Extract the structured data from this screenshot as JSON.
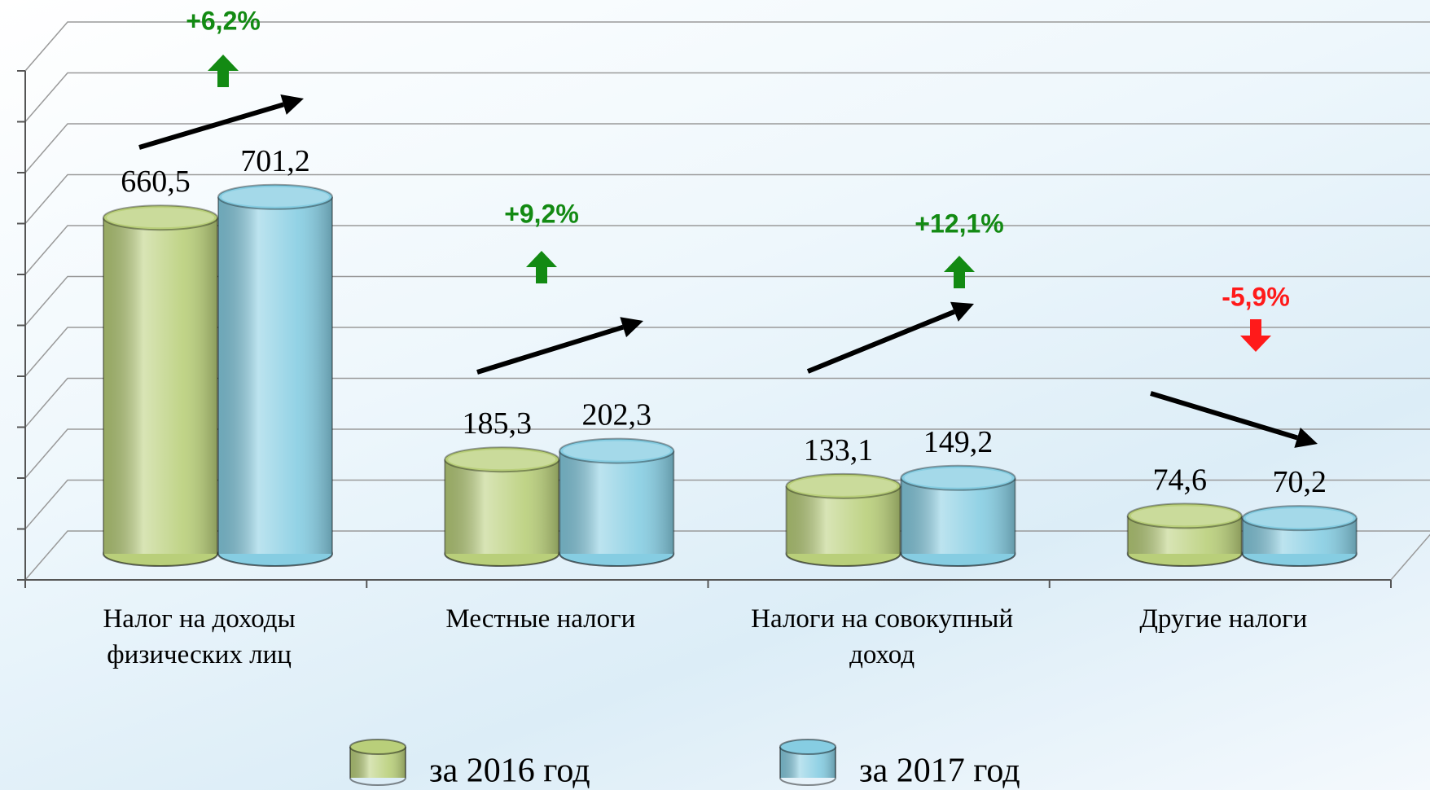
{
  "chart_data": {
    "type": "bar3d",
    "categories": [
      "Налог на доходы физических лиц",
      "Местные налоги",
      "Налоги на совокупный доход",
      "Другие налоги"
    ],
    "series": [
      {
        "name": "за 2016 год",
        "color": "#b9cf7a",
        "values": [
          660.5,
          185.3,
          133.1,
          74.6
        ],
        "value_labels": [
          "660,5",
          "185,3",
          "133,1",
          "74,6"
        ]
      },
      {
        "name": "за 2017 год",
        "color": "#86cde2",
        "values": [
          701.2,
          202.3,
          149.2,
          70.2
        ],
        "value_labels": [
          "701,2",
          "202,3",
          "149,2",
          "70,2"
        ]
      }
    ],
    "annotations": [
      {
        "text": "+6,2%",
        "color": "#138a13"
      },
      {
        "text": "+9,2%",
        "color": "#138a13"
      },
      {
        "text": "+12,1%",
        "color": "#138a13"
      },
      {
        "text": "-5,9%",
        "color": "#ff1a1a"
      }
    ],
    "ylim": [
      0,
      1000
    ],
    "yticks": [
      0,
      100,
      200,
      300,
      400,
      500,
      600,
      700,
      800,
      900,
      1000
    ],
    "grid": true
  }
}
